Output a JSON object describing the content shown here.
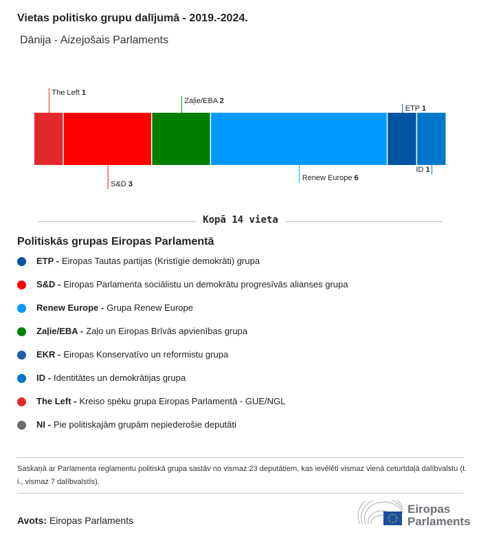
{
  "title": "Vietas politisko grupu dalījumā - 2019.-2024.",
  "subtitle": "Dānija - Aizejošais Parlaments",
  "chart_data": {
    "type": "bar",
    "orientation": "stacked-horizontal",
    "categories": [
      "The Left",
      "S&D",
      "Zaļie/EBA",
      "Renew Europe",
      "ETP",
      "ID"
    ],
    "values": [
      1,
      3,
      2,
      6,
      1,
      1
    ],
    "colors": [
      "#e3292d",
      "#ff0000",
      "#008000",
      "#0099ff",
      "#0055a2",
      "#0077c8"
    ],
    "label_position": [
      "top",
      "bottom",
      "top",
      "bottom",
      "top",
      "bottom"
    ],
    "total_label": "Kopā 14 vieta"
  },
  "legend": {
    "title": "Politiskās grupas Eiropas Parlamentā",
    "items": [
      {
        "abbr": "ETP -",
        "name": "Eiropas Tautas partijas (Kristīgie demokrāti) grupa",
        "color": "#0055a2"
      },
      {
        "abbr": "S&D -",
        "name": "Eiropas Parlamenta sociālistu un demokrātu progresīvās alianses grupa",
        "color": "#ff0000"
      },
      {
        "abbr": "Renew Europe -",
        "name": "Grupa Renew Europe",
        "color": "#0099ff"
      },
      {
        "abbr": "Zaļie/EBA -",
        "name": "Zaļo un Eiropas Brīvās apvienības grupa",
        "color": "#008000"
      },
      {
        "abbr": "EKR -",
        "name": "Eiropas Konservatīvo un reformistu grupa",
        "color": "#1e5ea8"
      },
      {
        "abbr": "ID -",
        "name": "Identitātes un demokrātijas grupa",
        "color": "#0077c8"
      },
      {
        "abbr": "The Left -",
        "name": "Kreiso spēku grupa Eiropas Parlamentā - GUE/NGL",
        "color": "#e3292d"
      },
      {
        "abbr": "NI -",
        "name": "Pie politiskajām grupām nepiederošie deputāti",
        "color": "#6b6b6b"
      }
    ]
  },
  "note": "Saskaņā ar Parlamenta reglamentu politiskā grupa sastāv no vismaz 23 deputātiem, kas ievēlēti vismaz vienā ceturtdaļā dalībvalstu (t. i., vismaz 7 dalībvalstīs).",
  "source": {
    "label": "Avots:",
    "value": "Eiropas Parlaments"
  },
  "logo": {
    "line1": "Eiropas",
    "line2": "Parlaments"
  }
}
